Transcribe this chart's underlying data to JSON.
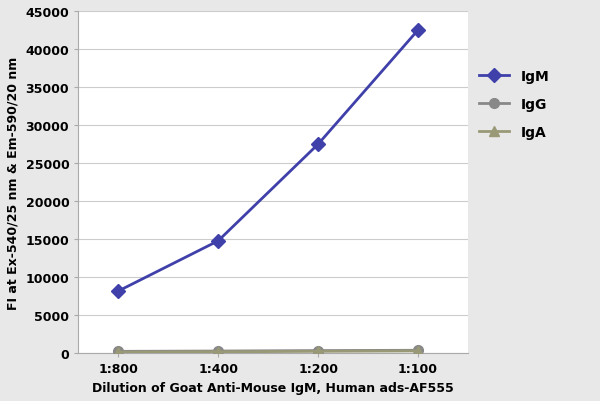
{
  "x_labels": [
    "1:800",
    "1:400",
    "1:200",
    "1:100"
  ],
  "x_positions": [
    1,
    2,
    3,
    4
  ],
  "IgM_values": [
    8200,
    14800,
    27500,
    42500
  ],
  "IgG_values": [
    280,
    320,
    380,
    420
  ],
  "IgA_values": [
    180,
    220,
    280,
    330
  ],
  "IgM_color": "#4040aa",
  "IgG_color": "#888888",
  "IgA_color": "#999977",
  "ylabel": "FI at Ex-540/25 nm & Em-590/20 nm",
  "xlabel": "Dilution of Goat Anti-Mouse IgM, Human ads-AF555",
  "ylim": [
    0,
    45000
  ],
  "yticks": [
    0,
    5000,
    10000,
    15000,
    20000,
    25000,
    30000,
    35000,
    40000,
    45000
  ],
  "background_color": "#e8e8e8",
  "plot_bg_color": "#ffffff",
  "grid_color": "#cccccc",
  "legend_labels": [
    "IgM",
    "IgG",
    "IgA"
  ],
  "axis_fontsize": 9,
  "tick_fontsize": 9,
  "legend_fontsize": 10,
  "linewidth": 2.0,
  "markersize": 7
}
